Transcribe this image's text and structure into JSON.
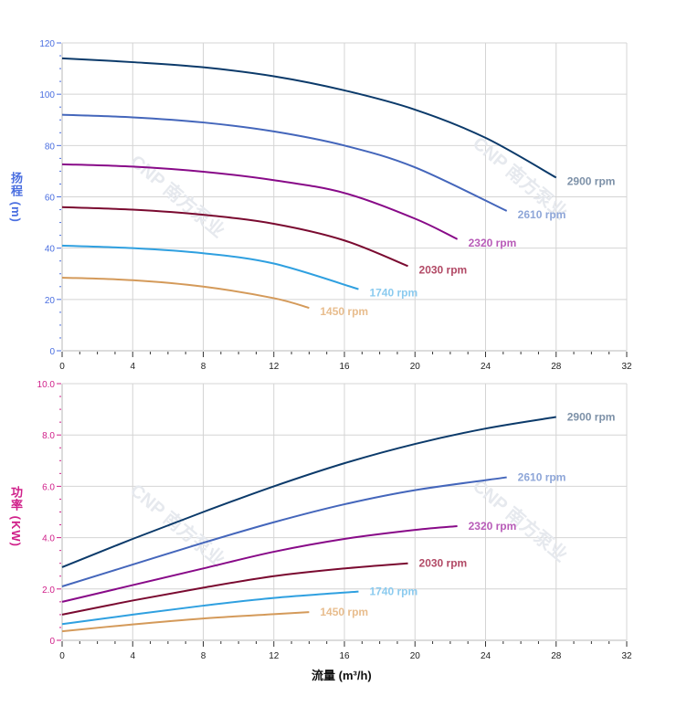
{
  "watermark": "CNP 南方泵业",
  "chart_data": [
    {
      "type": "line",
      "ylabel": "扬程 (m)",
      "xlabel": "",
      "xlim": [
        0,
        32
      ],
      "ylim": [
        0,
        120
      ],
      "xticks": [
        0,
        4,
        8,
        12,
        16,
        20,
        24,
        28,
        32
      ],
      "yticks": [
        0,
        20,
        40,
        60,
        80,
        100,
        120
      ],
      "ytick_labels": [
        "0",
        "20",
        "40",
        "60",
        "80",
        "100",
        "120"
      ],
      "grid": true,
      "axis_color": "#4a6ee0",
      "series": [
        {
          "name": "2900 rpm",
          "color": "#0b3a6a",
          "label_color": "#7d91a8",
          "x": [
            0,
            4,
            8,
            12,
            16,
            20,
            24,
            28
          ],
          "y": [
            114,
            112.5,
            110.5,
            107,
            101.5,
            94,
            83,
            67.5
          ]
        },
        {
          "name": "2610 rpm",
          "color": "#4466bb",
          "label_color": "#8ea6d8",
          "x": [
            0,
            4,
            8,
            12,
            16,
            20,
            25.2
          ],
          "y": [
            92,
            91,
            89,
            85.5,
            80,
            71.5,
            54.5
          ]
        },
        {
          "name": "2320 rpm",
          "color": "#880a88",
          "label_color": "#b85cb8",
          "x": [
            0,
            4,
            8,
            12,
            16,
            20,
            22.4
          ],
          "y": [
            72.7,
            71.8,
            69.8,
            66.5,
            61.5,
            51.5,
            43.5
          ]
        },
        {
          "name": "2030 rpm",
          "color": "#7a0a30",
          "label_color": "#b24a66",
          "x": [
            0,
            4,
            8,
            12,
            16,
            19.6
          ],
          "y": [
            56,
            55,
            53,
            49.5,
            43,
            33
          ]
        },
        {
          "name": "1740 rpm",
          "color": "#2fa0e0",
          "label_color": "#8ccbef",
          "x": [
            0,
            4,
            8,
            12,
            16.8
          ],
          "y": [
            41,
            40,
            38,
            34,
            24
          ]
        },
        {
          "name": "1450 rpm",
          "color": "#d49a5a",
          "label_color": "#e8bd8e",
          "x": [
            0,
            4,
            8,
            12,
            14
          ],
          "y": [
            28.5,
            27.5,
            25,
            20.5,
            16.7
          ]
        }
      ]
    },
    {
      "type": "line",
      "ylabel": "功率 (KW)",
      "xlabel": "流量 (m³/h)",
      "xlim": [
        0,
        32
      ],
      "ylim": [
        0,
        10
      ],
      "xticks": [
        0,
        4,
        8,
        12,
        16,
        20,
        24,
        28,
        32
      ],
      "yticks": [
        0,
        2,
        4,
        6,
        8,
        10
      ],
      "ytick_labels": [
        "0",
        "2.0",
        "4.0",
        "6.0",
        "8.0",
        "10.0"
      ],
      "grid": true,
      "axis_color": "#d0208a",
      "series": [
        {
          "name": "2900 rpm",
          "color": "#0b3a6a",
          "label_color": "#7d91a8",
          "x": [
            0,
            4,
            8,
            12,
            16,
            20,
            24,
            28
          ],
          "y": [
            2.85,
            3.95,
            5.0,
            6.0,
            6.9,
            7.65,
            8.25,
            8.7
          ]
        },
        {
          "name": "2610 rpm",
          "color": "#4466bb",
          "label_color": "#8ea6d8",
          "x": [
            0,
            4,
            8,
            12,
            16,
            20,
            25.2
          ],
          "y": [
            2.1,
            2.95,
            3.8,
            4.6,
            5.3,
            5.85,
            6.35
          ]
        },
        {
          "name": "2320 rpm",
          "color": "#880a88",
          "label_color": "#b85cb8",
          "x": [
            0,
            4,
            8,
            12,
            16,
            20,
            22.4
          ],
          "y": [
            1.5,
            2.15,
            2.8,
            3.45,
            3.95,
            4.3,
            4.45
          ]
        },
        {
          "name": "2030 rpm",
          "color": "#7a0a30",
          "label_color": "#b24a66",
          "x": [
            0,
            4,
            8,
            12,
            16,
            19.6
          ],
          "y": [
            1.0,
            1.55,
            2.05,
            2.5,
            2.8,
            3.0
          ]
        },
        {
          "name": "1740 rpm",
          "color": "#2fa0e0",
          "label_color": "#8ccbef",
          "x": [
            0,
            4,
            8,
            12,
            16.8
          ],
          "y": [
            0.63,
            1.0,
            1.35,
            1.65,
            1.9
          ]
        },
        {
          "name": "1450 rpm",
          "color": "#d49a5a",
          "label_color": "#e8bd8e",
          "x": [
            0,
            4,
            8,
            12,
            14
          ],
          "y": [
            0.35,
            0.62,
            0.85,
            1.02,
            1.1
          ]
        }
      ]
    }
  ]
}
